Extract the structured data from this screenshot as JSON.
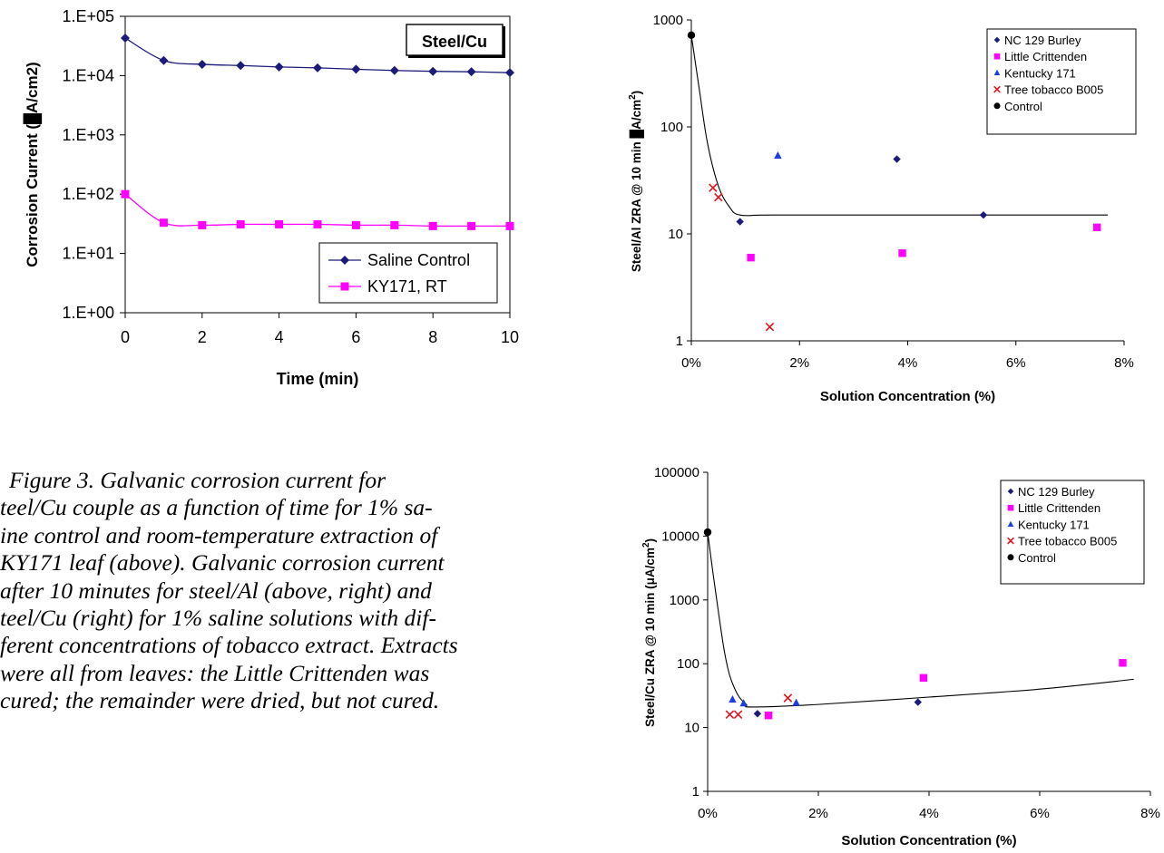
{
  "caption": {
    "lines": [
      "Figure 3.  Galvanic corrosion current for",
      "teel/Cu couple as a function of time for 1% sa-",
      "ine control and room-temperature extraction of",
      "KY171 leaf (above).  Galvanic corrosion current",
      "after 10 minutes for steel/Al (above, right) and",
      "teel/Cu (right) for 1% saline solutions with dif-",
      "ferent concentrations of tobacco extract.  Extracts",
      "were all from leaves:  the Little Crittenden was",
      "cured; the remainder were dried, but not cured."
    ]
  },
  "chart_data": [
    {
      "type": "line",
      "title": "Steel/Cu",
      "xlabel": "Time (min)",
      "ylabel": "Corrosion Current (",
      "ylabel_tail": "A/cm2)",
      "y_scale": "log",
      "xlim": [
        0,
        10
      ],
      "ylim": [
        1,
        100000
      ],
      "x_ticks": [
        "0",
        "2",
        "4",
        "6",
        "8",
        "10"
      ],
      "y_ticks": [
        "1.E+00",
        "1.E+01",
        "1.E+02",
        "1.E+03",
        "1.E+04",
        "1.E+05"
      ],
      "legend_position": "bottom-right",
      "grid": false,
      "x": [
        0,
        1,
        2,
        3,
        4,
        5,
        6,
        7,
        8,
        9,
        10
      ],
      "series": [
        {
          "name": "Saline Control",
          "color": "#1b1b7a",
          "marker": "diamond",
          "values": [
            43000,
            18000,
            15500,
            14800,
            14000,
            13500,
            12800,
            12200,
            11800,
            11600,
            11200
          ]
        },
        {
          "name": "KY171, RT",
          "color": "#ff00ff",
          "marker": "square",
          "values": [
            100,
            33,
            30,
            31,
            31,
            31,
            30,
            30,
            29,
            29,
            29
          ]
        }
      ]
    },
    {
      "type": "scatter",
      "xlabel": "Solution Concentration (%)",
      "ylabel": "Steel/Al ZRA @ 10 min ",
      "ylabel_tail": "A/cm",
      "ylabel_sup": "2",
      "y_scale": "log",
      "xlim": [
        0,
        0.08
      ],
      "ylim": [
        1,
        1000
      ],
      "x_ticks": [
        "0%",
        "2%",
        "4%",
        "6%",
        "8%"
      ],
      "y_ticks": [
        "1",
        "10",
        "100",
        "1000"
      ],
      "legend_position": "top-right",
      "grid": false,
      "series": [
        {
          "name": "NC 129 Burley",
          "color": "#1b1b7a",
          "marker": "diamond",
          "points": [
            [
              0.009,
              13
            ],
            [
              0.038,
              50
            ],
            [
              0.054,
              15
            ]
          ]
        },
        {
          "name": "Little Crittenden",
          "color": "#ff00ff",
          "marker": "square",
          "points": [
            [
              0.011,
              6
            ],
            [
              0.039,
              6.6
            ],
            [
              0.075,
              11.5
            ]
          ]
        },
        {
          "name": "Kentucky 171",
          "color": "#1a3fe0",
          "marker": "triangle",
          "points": [
            [
              0.016,
              54
            ]
          ]
        },
        {
          "name": "Tree tobacco B005",
          "color": "#e0141e",
          "marker": "x",
          "points": [
            [
              0.004,
              27
            ],
            [
              0.005,
              22
            ],
            [
              0.0145,
              1.35
            ]
          ]
        },
        {
          "name": "Control",
          "color": "#000000",
          "marker": "circle",
          "points": [
            [
              0,
              720
            ]
          ]
        }
      ],
      "trendline": [
        [
          0,
          720
        ],
        [
          0.0015,
          220
        ],
        [
          0.003,
          70
        ],
        [
          0.005,
          28
        ],
        [
          0.007,
          18
        ],
        [
          0.009,
          15
        ],
        [
          0.015,
          15
        ],
        [
          0.04,
          15
        ],
        [
          0.077,
          15
        ]
      ]
    },
    {
      "type": "scatter",
      "xlabel": "Solution Concentration (%)",
      "ylabel": "Steel/Cu ZRA @ 10 min (μA/cm",
      "ylabel_sup": "2",
      "ylabel_end": ")",
      "y_scale": "log",
      "xlim": [
        0,
        0.08
      ],
      "ylim": [
        1,
        100000
      ],
      "x_ticks": [
        "0%",
        "2%",
        "4%",
        "6%",
        "8%"
      ],
      "y_ticks": [
        "1",
        "10",
        "100",
        "1000",
        "10000",
        "100000"
      ],
      "legend_position": "top-right",
      "grid": false,
      "series": [
        {
          "name": "NC 129 Burley",
          "color": "#1b1b7a",
          "marker": "diamond",
          "points": [
            [
              0.009,
              16.5
            ],
            [
              0.038,
              25
            ]
          ]
        },
        {
          "name": "Little Crittenden",
          "color": "#ff00ff",
          "marker": "square",
          "points": [
            [
              0.011,
              15.5
            ],
            [
              0.039,
              60
            ],
            [
              0.075,
              103
            ]
          ]
        },
        {
          "name": "Kentucky 171",
          "color": "#1a3fe0",
          "marker": "triangle",
          "points": [
            [
              0.0045,
              27.5
            ],
            [
              0.0065,
              24
            ],
            [
              0.016,
              24.5
            ]
          ]
        },
        {
          "name": "Tree tobacco B005",
          "color": "#e0141e",
          "marker": "x",
          "points": [
            [
              0.004,
              16
            ],
            [
              0.0055,
              16
            ],
            [
              0.0145,
              29
            ]
          ]
        },
        {
          "name": "Control",
          "color": "#000000",
          "marker": "circle",
          "points": [
            [
              0,
              11500
            ]
          ]
        }
      ],
      "trendline": [
        [
          0,
          11500
        ],
        [
          0.001,
          2500
        ],
        [
          0.002,
          600
        ],
        [
          0.003,
          160
        ],
        [
          0.004,
          65
        ],
        [
          0.0055,
          32
        ],
        [
          0.007,
          23
        ],
        [
          0.008,
          21
        ],
        [
          0.02,
          23
        ],
        [
          0.04,
          30
        ],
        [
          0.06,
          40
        ],
        [
          0.077,
          57
        ]
      ]
    }
  ]
}
